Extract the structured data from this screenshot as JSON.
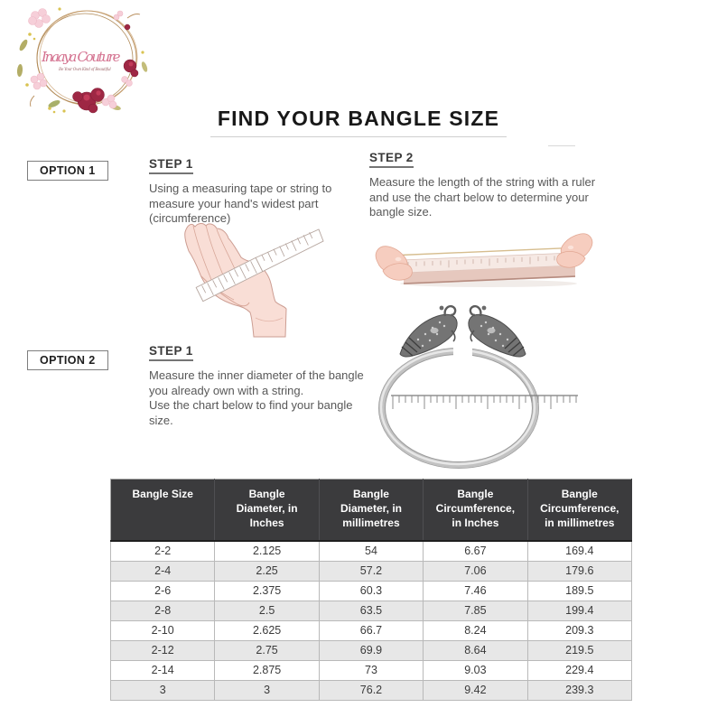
{
  "logo": {
    "brand": "Inaaya Couture",
    "tagline": "Be Your Own Kind of Beautiful"
  },
  "title": "FIND YOUR BANGLE SIZE",
  "options": {
    "option1": {
      "label": "OPTION 1",
      "steps": [
        {
          "heading": "STEP 1",
          "body": "Using a measuring tape or string to\nmeasure your hand's widest part\n(circumference)"
        },
        {
          "heading": "STEP 2",
          "body": "Measure the length of the string with a ruler\nand use the chart below to determine your\nbangle size."
        }
      ]
    },
    "option2": {
      "label": "OPTION 2",
      "steps": [
        {
          "heading": "STEP 1",
          "body": "Measure the inner diameter of the bangle\nyou already own with a string.\nUse the chart below to find your bangle\nsize."
        }
      ]
    }
  },
  "illustrations": {
    "logo_wreath": "floral-wreath-logo",
    "hand_measure": "hand-with-measuring-tape-illustration",
    "string_ruler": "hands-holding-string-over-ruler-illustration",
    "bangle_ruler": "bangle-with-ruler-illustration"
  },
  "size_chart": {
    "columns": [
      "Bangle Size",
      "Bangle\nDiameter, in\nInches",
      "Bangle\nDiameter, in\nmillimetres",
      "Bangle\nCircumference,\nin Inches",
      "Bangle\nCircumference,\nin millimetres"
    ],
    "rows": [
      [
        "2-2",
        "2.125",
        "54",
        "6.67",
        "169.4"
      ],
      [
        "2-4",
        "2.25",
        "57.2",
        "7.06",
        "179.6"
      ],
      [
        "2-6",
        "2.375",
        "60.3",
        "7.46",
        "189.5"
      ],
      [
        "2-8",
        "2.5",
        "63.5",
        "7.85",
        "199.4"
      ],
      [
        "2-10",
        "2.625",
        "66.7",
        "8.24",
        "209.3"
      ],
      [
        "2-12",
        "2.75",
        "69.9",
        "8.64",
        "219.5"
      ],
      [
        "2-14",
        "2.875",
        "73",
        "9.03",
        "229.4"
      ],
      [
        "3",
        "3",
        "76.2",
        "9.42",
        "239.3"
      ]
    ]
  },
  "colors": {
    "table_header_bg": "#3b3b3d",
    "row_alt_bg": "#e7e7e7",
    "brand_pink": "#d4718f",
    "flower_maroon": "#9e2744",
    "text_dark": "#181818",
    "text_body": "#585858"
  }
}
